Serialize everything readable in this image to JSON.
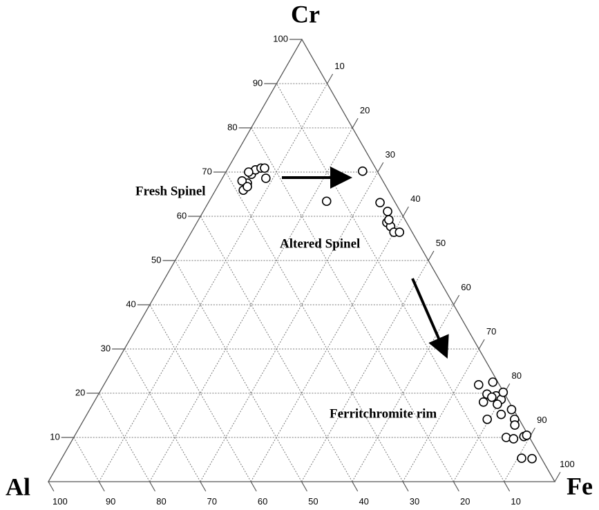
{
  "chart_data": {
    "type": "ternary",
    "axes": {
      "top": "Cr",
      "left": "Al",
      "right": "Fe"
    },
    "cr_ticks": [
      10,
      20,
      30,
      40,
      50,
      60,
      70,
      80,
      90,
      100
    ],
    "fe_ticks": [
      10,
      20,
      30,
      40,
      50,
      60,
      70,
      80,
      90,
      100
    ],
    "al_ticks": [
      10,
      20,
      30,
      40,
      50,
      60,
      70,
      80,
      90,
      100
    ],
    "grid": true,
    "points": {
      "cr": [
        65.9,
        67.5,
        69.5,
        70.5,
        70.9,
        70.9,
        68.6,
        70.0,
        68.0,
        66.7,
        70.2,
        63.4,
        63.1,
        61.1,
        58.6,
        57.7,
        56.4,
        56.4,
        59.2,
        21.9,
        22.5,
        19.8,
        19.4,
        18.6,
        18.0,
        17.5,
        16.3,
        15.2,
        14.1,
        12.8,
        14.1,
        10.0,
        9.7,
        10.2,
        10.5,
        5.3,
        5.2,
        20.2,
        19.1
      ],
      "fe": [
        5.5,
        5.5,
        5.3,
        5.6,
        6.5,
        7.2,
        8.6,
        4.5,
        4.2,
        5.9,
        26.9,
        23.2,
        33.9,
        36.4,
        37.5,
        38.7,
        40.0,
        41.1,
        37.6,
        74.0,
        76.5,
        76.7,
        78.7,
        80.1,
        76.9,
        79.9,
        83.3,
        81.8,
        85.0,
        85.7,
        79.6,
        85.4,
        87.0,
        88.8,
        89.2,
        90.8,
        92.9,
        79.7,
        78.0
      ],
      "al": [
        28.6,
        27.0,
        25.2,
        23.9,
        22.6,
        21.9,
        22.8,
        25.5,
        27.8,
        27.4,
        2.9,
        13.4,
        3.0,
        2.5,
        3.9,
        3.6,
        3.6,
        2.5,
        3.2,
        4.1,
        1.0,
        3.5,
        1.9,
        1.3,
        5.1,
        2.6,
        0.4,
        3.0,
        0.9,
        1.5,
        6.3,
        4.6,
        3.3,
        1.0,
        0.3,
        3.9,
        1.9,
        0.1,
        2.9
      ]
    },
    "annotations": [
      "Fresh Spinel",
      "Altered Spinel",
      "Ferritchromite rim"
    ]
  }
}
